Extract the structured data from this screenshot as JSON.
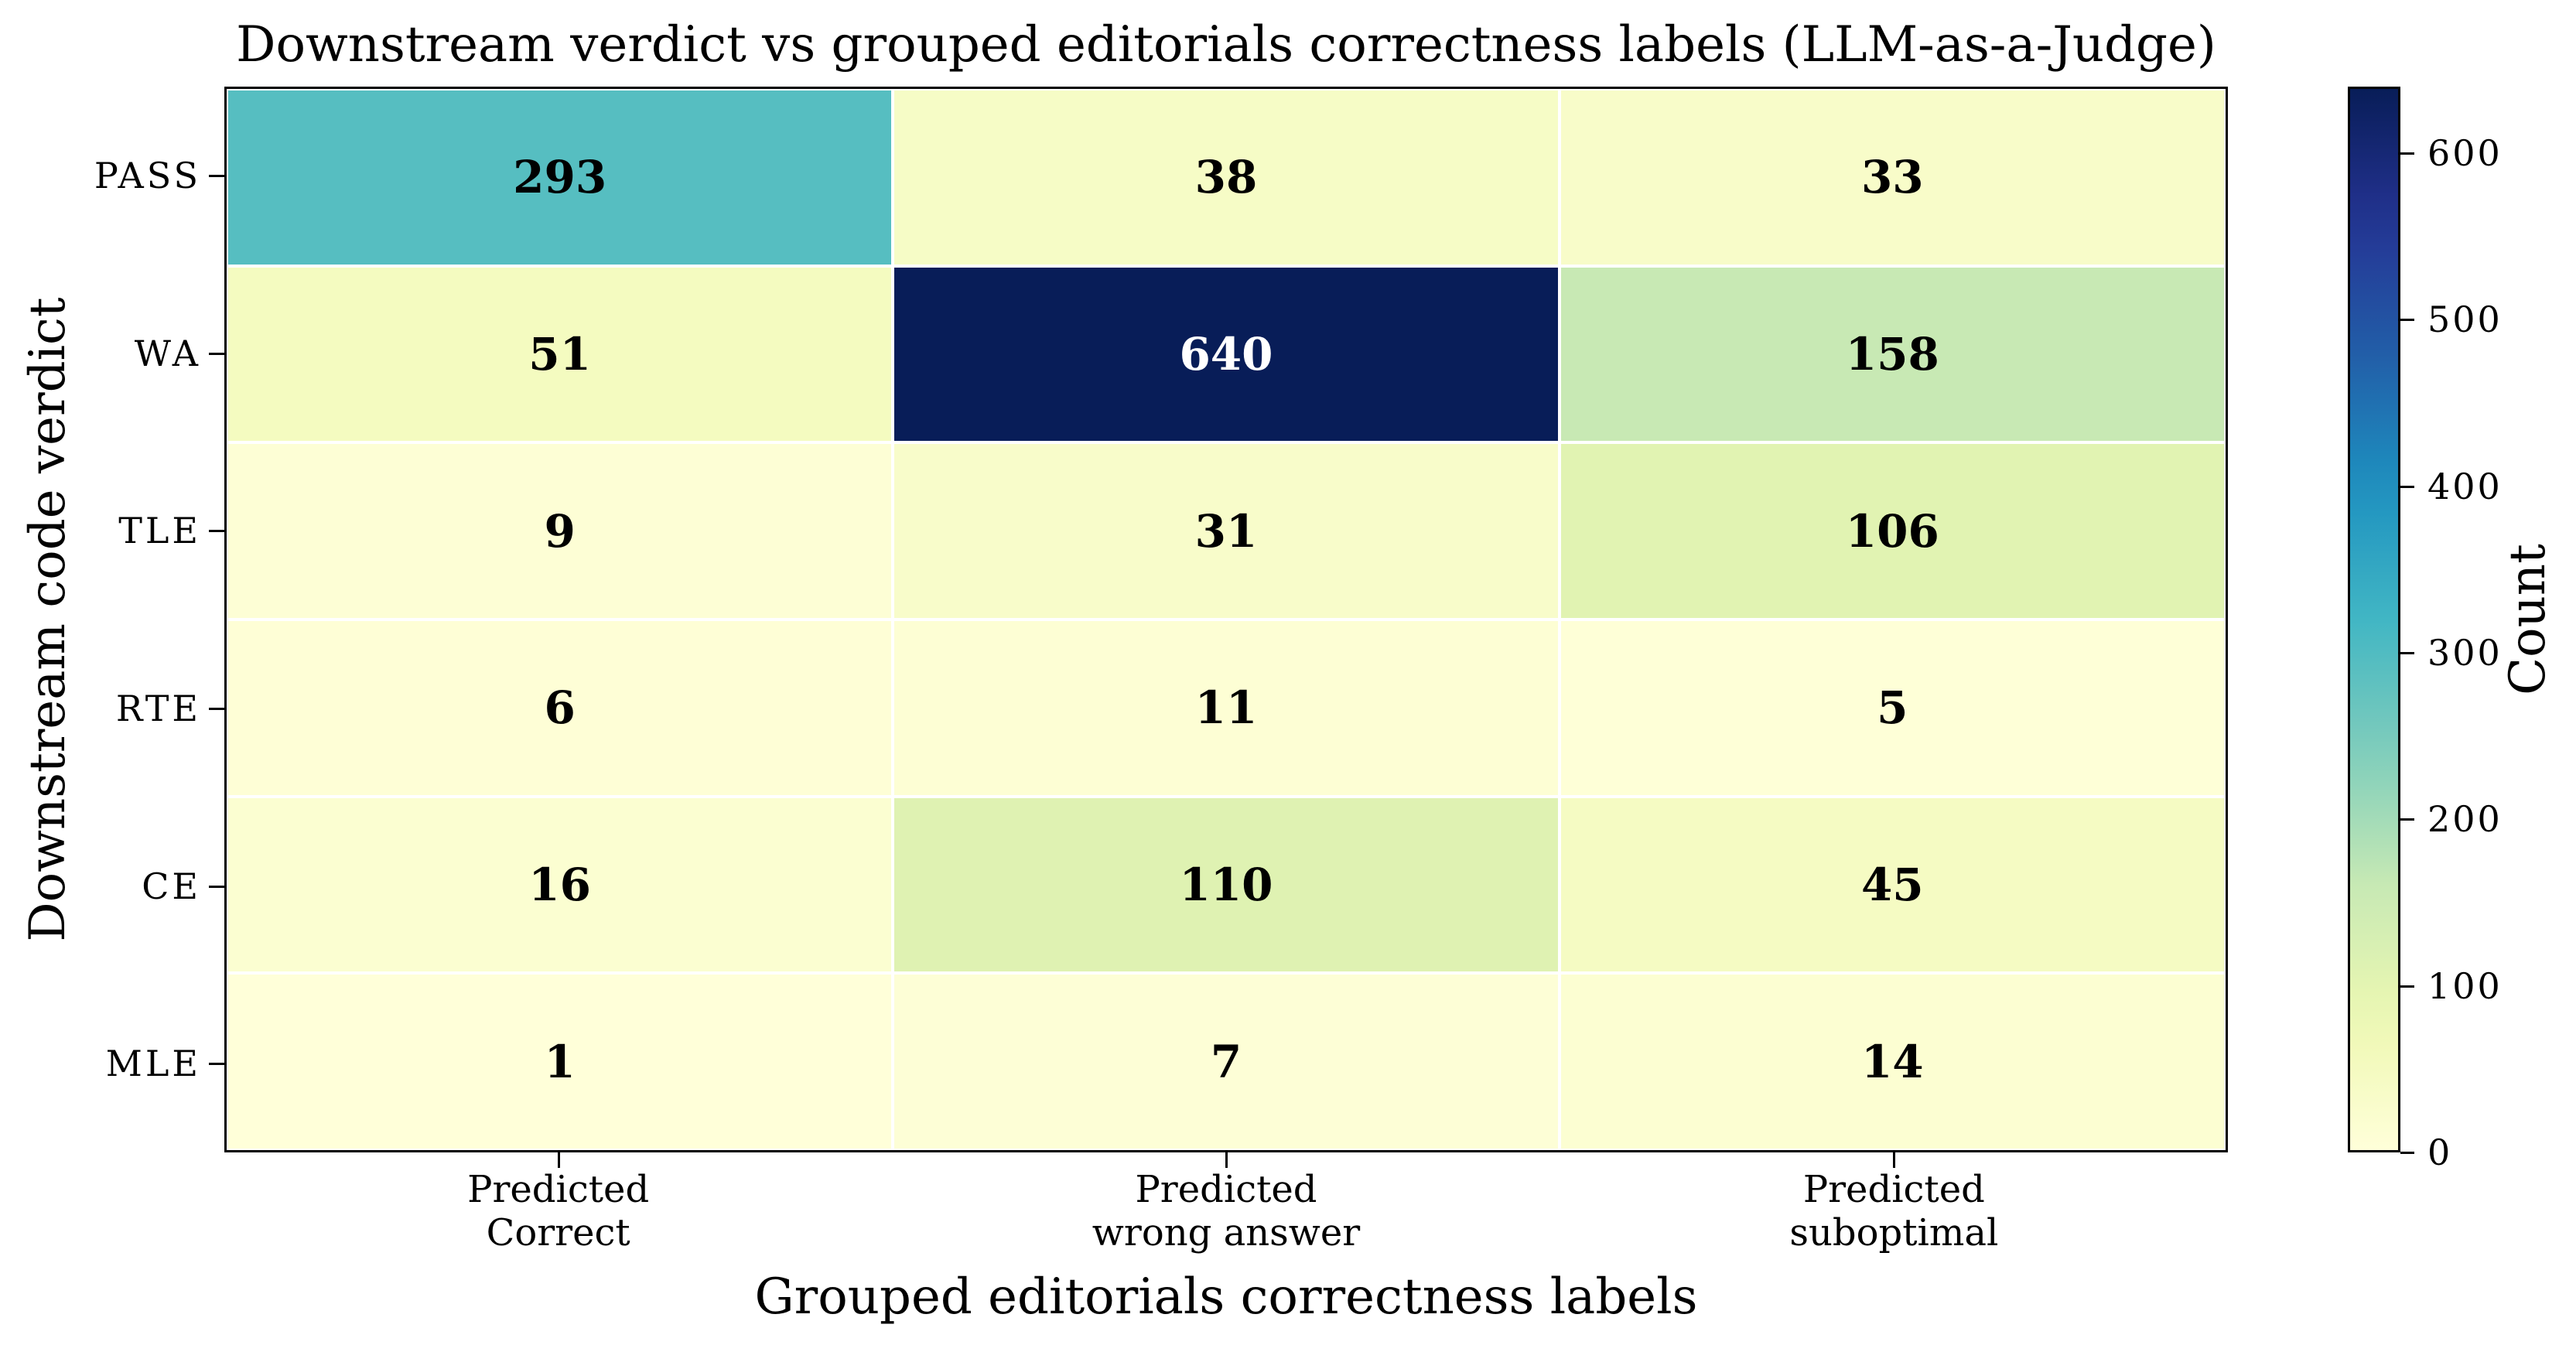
{
  "chart_data": {
    "type": "heatmap",
    "title": "Downstream verdict vs grouped editorials correctness labels (LLM-as-a-Judge)",
    "xlabel": "Grouped editorials correctness labels",
    "ylabel": "Downstream code verdict",
    "x_categories": [
      "Predicted\nCorrect",
      "Predicted\nwrong answer",
      "Predicted\nsuboptimal"
    ],
    "y_categories": [
      "PASS",
      "WA",
      "TLE",
      "RTE",
      "CE",
      "MLE"
    ],
    "values": [
      [
        293,
        38,
        33
      ],
      [
        51,
        640,
        158
      ],
      [
        9,
        31,
        106
      ],
      [
        6,
        11,
        5
      ],
      [
        16,
        110,
        45
      ],
      [
        1,
        7,
        14
      ]
    ],
    "colormap": "YlGnBu",
    "colorbar": {
      "label": "Count",
      "range": [
        0,
        640
      ],
      "ticks": [
        0,
        100,
        200,
        300,
        400,
        500,
        600
      ]
    },
    "annotations": "cell counts shown in bold; white text on darkest cell"
  },
  "colors": {
    "cmap_stops": [
      "#ffffd9",
      "#edf8b1",
      "#c7e9b4",
      "#7fcdbb",
      "#41b6c4",
      "#1d91c0",
      "#225ea8",
      "#253494",
      "#081d58"
    ],
    "cell_border": "#ffffff",
    "text_dark": "#000000",
    "text_light": "#ffffff"
  }
}
